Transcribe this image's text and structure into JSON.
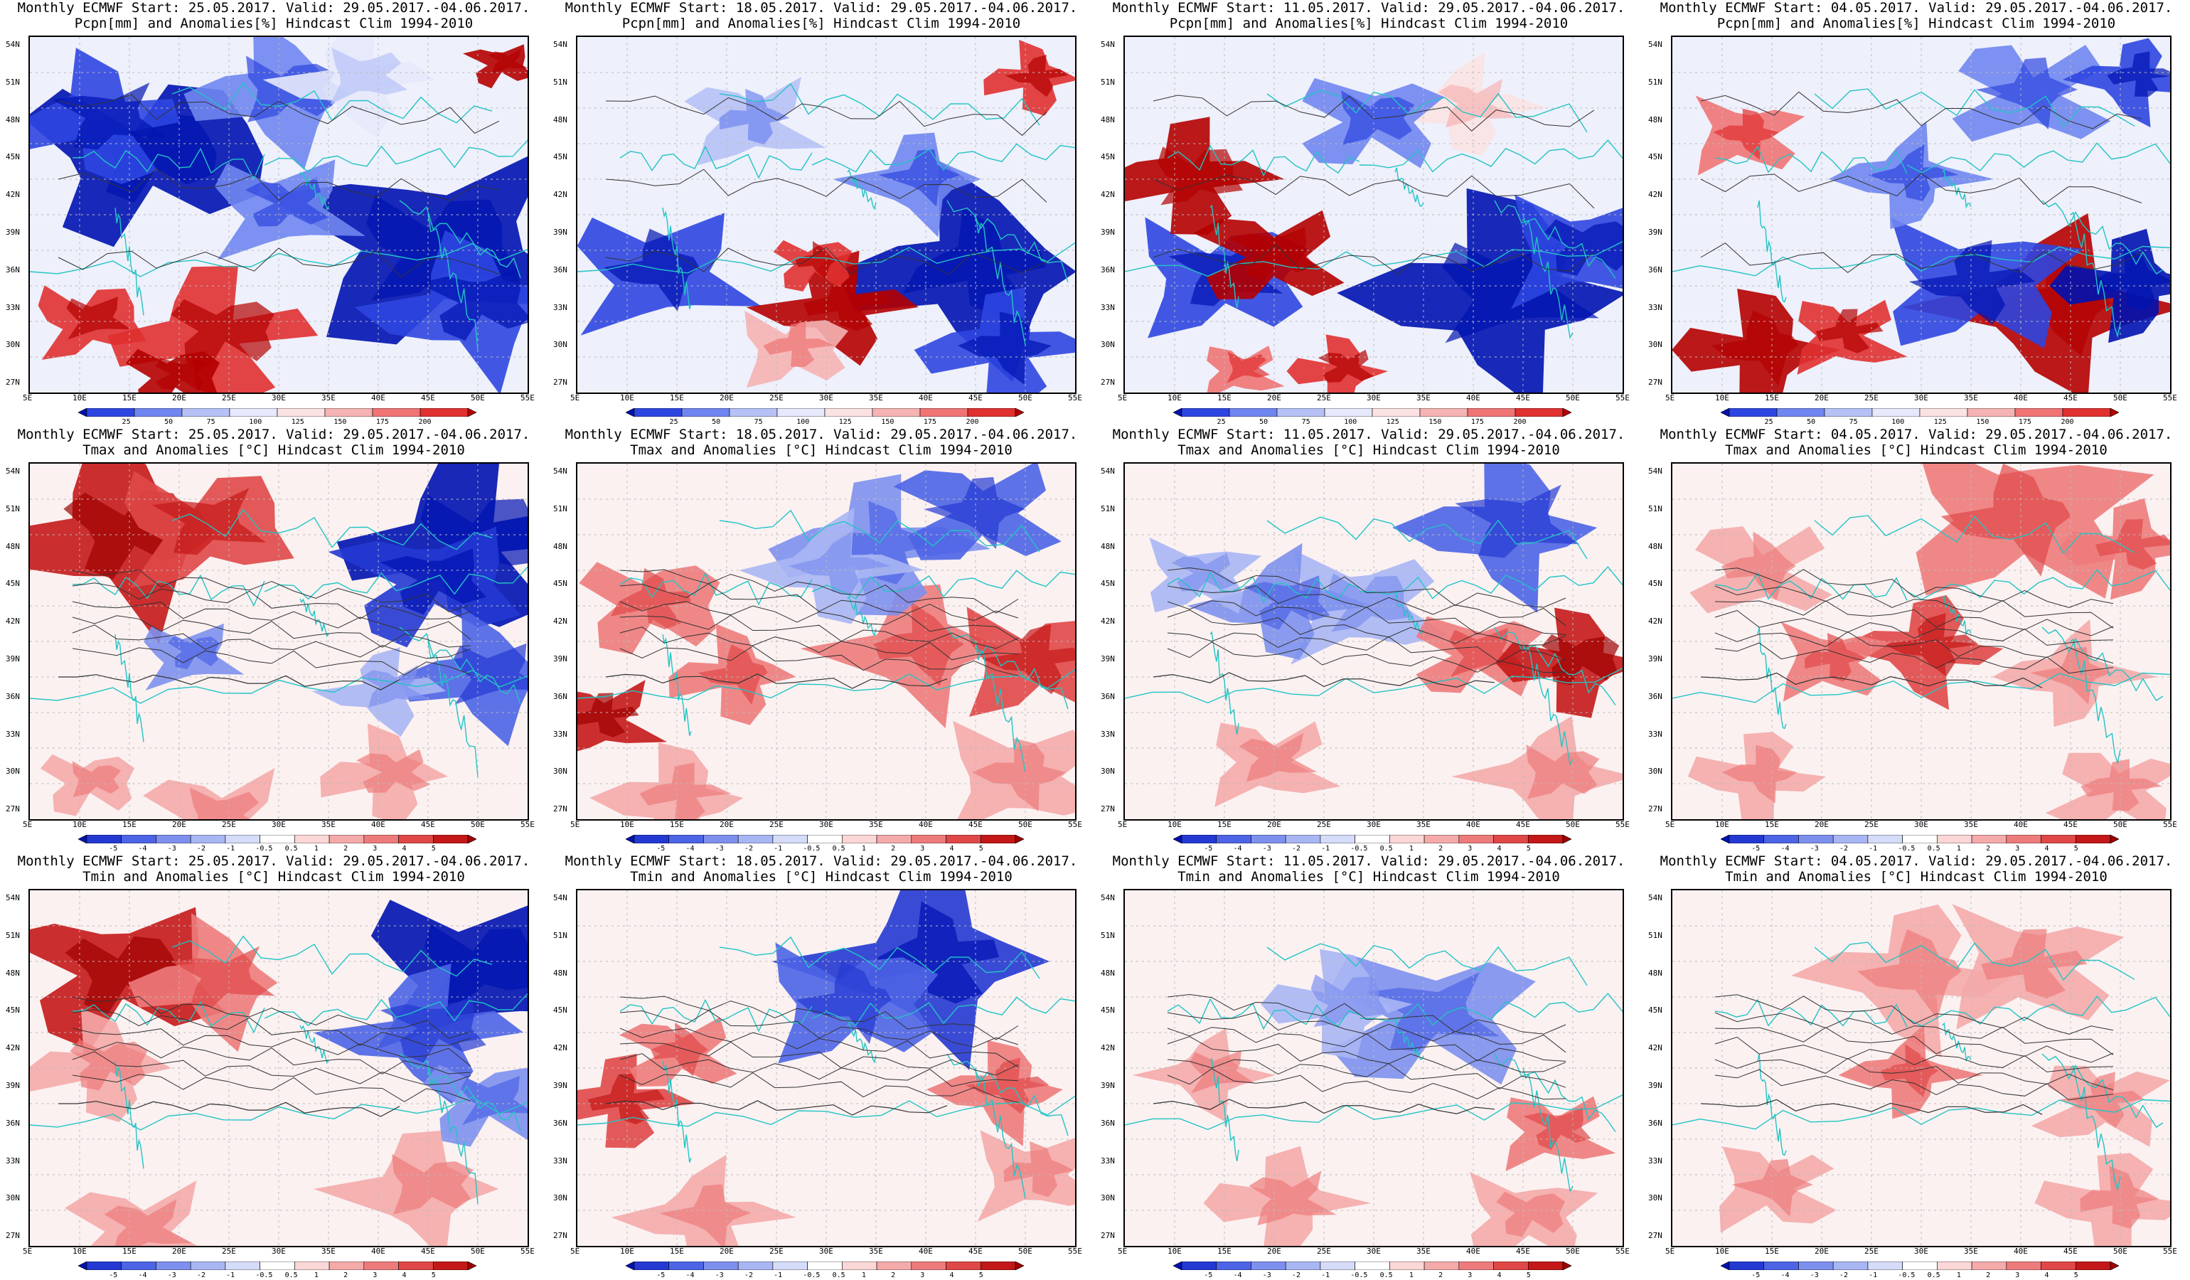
{
  "rows": [
    {
      "variable_label": "Pcpn[mm] and Anomalies[%] Hindcast Clim 1994-2010",
      "colorbar": [
        "25",
        "50",
        "75",
        "100",
        "125",
        "150",
        "175",
        "200"
      ],
      "colorbar_colors": [
        "#0012b0",
        "#2e46e0",
        "#6f86f0",
        "#b6c2f6",
        "#e6e9fb",
        "#fbe3e3",
        "#f6b3b3",
        "#f07474",
        "#e03030",
        "#b40000"
      ],
      "panels": [
        {
          "start": "25.05.2017"
        },
        {
          "start": "18.05.2017"
        },
        {
          "start": "11.05.2017"
        },
        {
          "start": "04.05.2017"
        }
      ]
    },
    {
      "variable_label": "Tmax and Anomalies [°C] Hindcast Clim 1994-2010",
      "colorbar": [
        "-5",
        "-4",
        "-3",
        "-2",
        "-1",
        "-0.5",
        "0.5",
        "1",
        "2",
        "3",
        "4",
        "5"
      ],
      "colorbar_colors": [
        "#0012b0",
        "#2439d2",
        "#4d64e6",
        "#7d90ee",
        "#a9b6f4",
        "#d5dcf9",
        "#ffffff",
        "#fbd7d7",
        "#f5aaaa",
        "#ee7b7b",
        "#e04848",
        "#c41818",
        "#a00000"
      ],
      "panels": [
        {
          "start": "25.05.2017"
        },
        {
          "start": "18.05.2017"
        },
        {
          "start": "11.05.2017"
        },
        {
          "start": "04.05.2017"
        }
      ]
    },
    {
      "variable_label": "Tmin and Anomalies [°C] Hindcast Clim 1994-2010",
      "colorbar": [
        "-5",
        "-4",
        "-3",
        "-2",
        "-1",
        "-0.5",
        "0.5",
        "1",
        "2",
        "3",
        "4",
        "5"
      ],
      "colorbar_colors": [
        "#0012b0",
        "#2439d2",
        "#4d64e6",
        "#7d90ee",
        "#a9b6f4",
        "#d5dcf9",
        "#ffffff",
        "#fbd7d7",
        "#f5aaaa",
        "#ee7b7b",
        "#e04848",
        "#c41818",
        "#a00000"
      ],
      "panels": [
        {
          "start": "25.05.2017"
        },
        {
          "start": "18.05.2017"
        },
        {
          "start": "11.05.2017"
        },
        {
          "start": "04.05.2017"
        }
      ]
    }
  ],
  "header_prefix": "Monthly ECMWF Start: ",
  "valid": ". Valid: 29.05.2017.-04.06.2017.",
  "lat_labels": [
    "54N",
    "51N",
    "48N",
    "45N",
    "42N",
    "39N",
    "36N",
    "33N",
    "30N",
    "27N"
  ],
  "lon_labels": [
    "5E",
    "10E",
    "15E",
    "20E",
    "25E",
    "30E",
    "35E",
    "40E",
    "45E",
    "50E",
    "55E"
  ],
  "colors": {
    "coast": "#22c4c4",
    "contour": "#333333",
    "grid": "#bbbbbb"
  }
}
